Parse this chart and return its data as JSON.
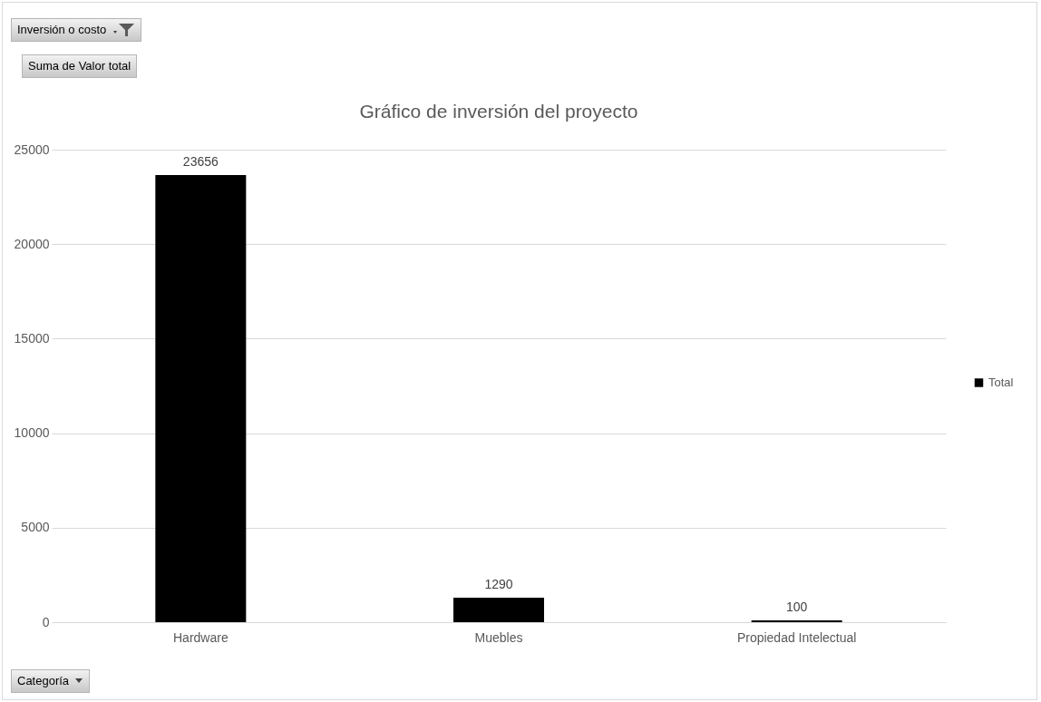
{
  "chart_data": {
    "type": "bar",
    "title": "Gráfico de inversión del proyecto",
    "categories": [
      "Hardware",
      "Muebles",
      "Propiedad Intelectual"
    ],
    "series": [
      {
        "name": "Total",
        "color": "#000000",
        "values": [
          23656,
          1290,
          100
        ]
      }
    ],
    "ylim": [
      0,
      25000
    ],
    "yticks": [
      0,
      5000,
      10000,
      15000,
      20000,
      25000
    ],
    "grid": "y",
    "legend": "right",
    "data_labels": true,
    "annotations": [
      "Inversión o costo",
      "Suma de Valor total",
      "Categoría"
    ]
  }
}
